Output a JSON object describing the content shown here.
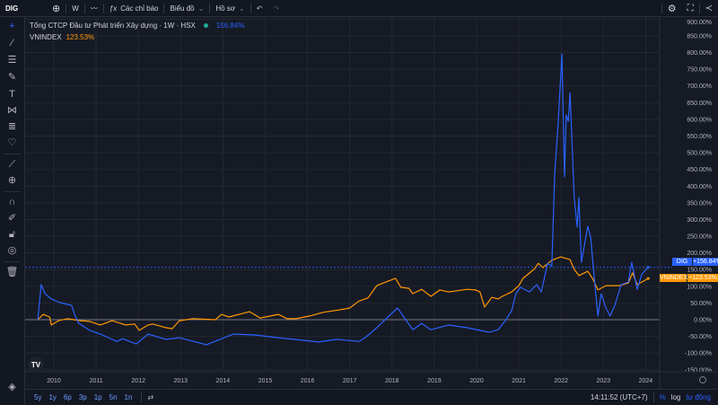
{
  "topbar": {
    "symbol": "DIG",
    "interval": "W",
    "indicators_label": "Các chỉ báo",
    "chart_menu_label": "Biểu đồ",
    "profile_menu_label": "Hồ sơ",
    "icons": [
      "plus-circle-icon",
      "line-chart-icon",
      "fx-icon",
      "undo-icon",
      "redo-icon",
      "gear-icon",
      "fullscreen-icon",
      "share-icon"
    ]
  },
  "left_toolbar": {
    "icons": [
      "crosshair-icon",
      "trend-line-icon",
      "fib-lines-icon",
      "brush-icon",
      "text-icon",
      "pattern-icon",
      "measure-range-icon",
      "heart-icon",
      "ruler-icon",
      "zoom-in-icon",
      "magnet-icon",
      "lock-drawing-icon",
      "unlock-icon",
      "eye-icon",
      "trash-icon",
      "layers-icon"
    ]
  },
  "legend": {
    "main_title": "Tổng CTCP Đầu tư Phát triển Xây dựng · 1W · HSX",
    "main_value": "156.84%",
    "compare_name": "VNINDEX",
    "compare_value": "123.53%"
  },
  "price_tags": {
    "dig_label": "DIG",
    "dig_value": "+156.84%",
    "vnindex_label": "VNINDEX",
    "vnindex_value": "+123.53%"
  },
  "bottombar": {
    "ranges": [
      "5y",
      "1y",
      "6p",
      "3p",
      "1p",
      "5n",
      "1n"
    ],
    "time": "14:11:52 (UTC+7)",
    "percent_label": "%",
    "log_label": "log",
    "auto_label": "tự động"
  },
  "colors": {
    "dig": "#2962ff",
    "vnindex": "#ff9800",
    "background": "#161a25",
    "grid": "#232733"
  },
  "chart_data": {
    "type": "line",
    "xlabel": "",
    "ylabel": "",
    "x_ticks": [
      "2010",
      "2011",
      "2012",
      "2013",
      "2014",
      "2015",
      "2016",
      "2017",
      "2018",
      "2019",
      "2020",
      "2021",
      "2022",
      "2023",
      "2024"
    ],
    "y_ticks": [
      "900.00%",
      "850.00%",
      "800.00%",
      "750.00%",
      "700.00%",
      "650.00%",
      "600.00%",
      "550.00%",
      "500.00%",
      "450.00%",
      "400.00%",
      "350.00%",
      "300.00%",
      "250.00%",
      "200.00%",
      "150.00%",
      "100.00%",
      "50.00%",
      "0.00%",
      "-50.00%",
      "-100.00%",
      "-150.00%"
    ],
    "ylim": [
      -150,
      900
    ],
    "xlim": [
      2009.5,
      2024.4
    ],
    "grid": true,
    "y_unit": "%",
    "series": [
      {
        "name": "DIG",
        "color": "#2962ff",
        "points": [
          [
            2009.62,
            0
          ],
          [
            2009.7,
            105
          ],
          [
            2009.79,
            78
          ],
          [
            2009.94,
            62
          ],
          [
            2010.15,
            51
          ],
          [
            2010.42,
            43
          ],
          [
            2010.49,
            16
          ],
          [
            2010.59,
            -11
          ],
          [
            2010.85,
            -32
          ],
          [
            2011.1,
            -43
          ],
          [
            2011.49,
            -65
          ],
          [
            2011.63,
            -57
          ],
          [
            2011.95,
            -73
          ],
          [
            2012.23,
            -43
          ],
          [
            2012.65,
            -59
          ],
          [
            2012.97,
            -54
          ],
          [
            2013.61,
            -75
          ],
          [
            2013.93,
            -59
          ],
          [
            2014.25,
            -43
          ],
          [
            2014.78,
            -46
          ],
          [
            2015.31,
            -54
          ],
          [
            2015.94,
            -62
          ],
          [
            2016.26,
            -67
          ],
          [
            2016.69,
            -59
          ],
          [
            2017.22,
            -65
          ],
          [
            2017.39,
            -51
          ],
          [
            2017.64,
            -24
          ],
          [
            2017.86,
            3
          ],
          [
            2018.13,
            35
          ],
          [
            2018.49,
            -30
          ],
          [
            2018.7,
            -11
          ],
          [
            2018.92,
            -30
          ],
          [
            2019.34,
            -16
          ],
          [
            2019.77,
            -24
          ],
          [
            2020.08,
            -32
          ],
          [
            2020.3,
            -38
          ],
          [
            2020.51,
            -30
          ],
          [
            2020.68,
            -3
          ],
          [
            2020.83,
            27
          ],
          [
            2020.93,
            78
          ],
          [
            2021.04,
            97
          ],
          [
            2021.25,
            83
          ],
          [
            2021.42,
            105
          ],
          [
            2021.53,
            83
          ],
          [
            2021.68,
            169
          ],
          [
            2021.78,
            160
          ],
          [
            2021.85,
            438
          ],
          [
            2021.93,
            589
          ],
          [
            2022.02,
            796
          ],
          [
            2022.08,
            428
          ],
          [
            2022.12,
            613
          ],
          [
            2022.17,
            594
          ],
          [
            2022.21,
            680
          ],
          [
            2022.31,
            366
          ],
          [
            2022.38,
            277
          ],
          [
            2022.42,
            366
          ],
          [
            2022.48,
            172
          ],
          [
            2022.63,
            280
          ],
          [
            2022.7,
            245
          ],
          [
            2022.78,
            132
          ],
          [
            2022.87,
            11
          ],
          [
            2022.95,
            78
          ],
          [
            2023.06,
            35
          ],
          [
            2023.16,
            11
          ],
          [
            2023.27,
            43
          ],
          [
            2023.42,
            105
          ],
          [
            2023.59,
            113
          ],
          [
            2023.67,
            172
          ],
          [
            2023.8,
            91
          ],
          [
            2023.91,
            137
          ],
          [
            2024.06,
            156.84
          ]
        ]
      },
      {
        "name": "VNINDEX",
        "color": "#ff9800",
        "points": [
          [
            2009.62,
            0
          ],
          [
            2009.75,
            16
          ],
          [
            2009.9,
            8
          ],
          [
            2009.94,
            -16
          ],
          [
            2010.11,
            -3
          ],
          [
            2010.32,
            3
          ],
          [
            2010.64,
            -3
          ],
          [
            2010.85,
            -5
          ],
          [
            2011.1,
            -16
          ],
          [
            2011.38,
            -3
          ],
          [
            2011.7,
            -16
          ],
          [
            2011.91,
            -13
          ],
          [
            2012.02,
            -32
          ],
          [
            2012.23,
            -16
          ],
          [
            2012.34,
            -13
          ],
          [
            2012.65,
            -24
          ],
          [
            2012.8,
            -27
          ],
          [
            2012.97,
            -3
          ],
          [
            2013.29,
            3
          ],
          [
            2013.82,
            0
          ],
          [
            2013.97,
            16
          ],
          [
            2014.14,
            8
          ],
          [
            2014.63,
            24
          ],
          [
            2014.88,
            5
          ],
          [
            2015.31,
            16
          ],
          [
            2015.52,
            3
          ],
          [
            2015.73,
            3
          ],
          [
            2016.05,
            11
          ],
          [
            2016.37,
            22
          ],
          [
            2016.79,
            30
          ],
          [
            2017.0,
            35
          ],
          [
            2017.22,
            56
          ],
          [
            2017.43,
            65
          ],
          [
            2017.64,
            102
          ],
          [
            2018.08,
            124
          ],
          [
            2018.21,
            97
          ],
          [
            2018.4,
            94
          ],
          [
            2018.49,
            78
          ],
          [
            2018.7,
            91
          ],
          [
            2018.92,
            70
          ],
          [
            2019.13,
            89
          ],
          [
            2019.34,
            83
          ],
          [
            2019.77,
            91
          ],
          [
            2019.98,
            89
          ],
          [
            2020.08,
            83
          ],
          [
            2020.19,
            38
          ],
          [
            2020.36,
            67
          ],
          [
            2020.51,
            62
          ],
          [
            2020.61,
            70
          ],
          [
            2020.83,
            83
          ],
          [
            2021.0,
            102
          ],
          [
            2021.1,
            124
          ],
          [
            2021.36,
            151
          ],
          [
            2021.46,
            169
          ],
          [
            2021.57,
            156
          ],
          [
            2021.78,
            178
          ],
          [
            2021.99,
            188
          ],
          [
            2022.21,
            180
          ],
          [
            2022.31,
            151
          ],
          [
            2022.42,
            132
          ],
          [
            2022.63,
            145
          ],
          [
            2022.74,
            124
          ],
          [
            2022.87,
            89
          ],
          [
            2023.06,
            102
          ],
          [
            2023.16,
            102
          ],
          [
            2023.38,
            102
          ],
          [
            2023.59,
            110
          ],
          [
            2023.69,
            140
          ],
          [
            2023.8,
            105
          ],
          [
            2023.91,
            113
          ],
          [
            2024.06,
            123.53
          ]
        ]
      }
    ]
  }
}
